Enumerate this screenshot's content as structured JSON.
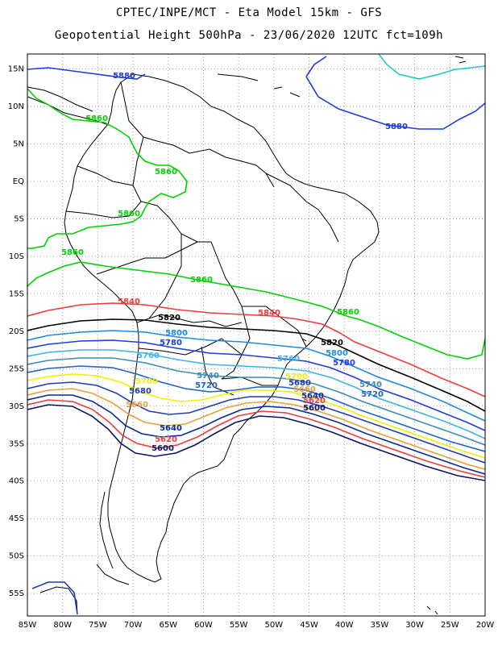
{
  "title_line1": "CPTEC/INPE/MCT - Eta Model 15km - GFS",
  "title_line2": "Geopotential Height 500hPa - 23/06/2020 12UTC fct=109h",
  "map": {
    "lon_range": [
      -85,
      -20
    ],
    "lat_range": [
      -58,
      17
    ],
    "lat_ticks": [
      "15N",
      "10N",
      "5N",
      "EQ",
      "5S",
      "10S",
      "15S",
      "20S",
      "25S",
      "30S",
      "35S",
      "40S",
      "45S",
      "50S",
      "55S"
    ],
    "lon_ticks": [
      "85W",
      "80W",
      "75W",
      "70W",
      "65W",
      "60W",
      "55W",
      "50W",
      "45W",
      "40W",
      "35W",
      "30W",
      "25W",
      "20W"
    ],
    "grid": "dotted"
  },
  "contours": [
    {
      "value": 5880,
      "color": "#1e3cdc"
    },
    {
      "value": 5860,
      "color": "#00d200"
    },
    {
      "value": 5840,
      "color": "#f03c3c"
    },
    {
      "value": 5820,
      "color": "#000000"
    },
    {
      "value": 5800,
      "color": "#1e8cdc"
    },
    {
      "value": 5780,
      "color": "#1e3cdc"
    },
    {
      "value": 5760,
      "color": "#3cb4e6"
    },
    {
      "value": 5740,
      "color": "#3c8cb4"
    },
    {
      "value": 5720,
      "color": "#1e64c8"
    },
    {
      "value": 5700,
      "color": "#f0f000"
    },
    {
      "value": 5680,
      "color": "#1e3cb4"
    },
    {
      "value": 5660,
      "color": "#e6a03c"
    },
    {
      "value": 5640,
      "color": "#0a2896"
    },
    {
      "value": 5620,
      "color": "#f03c3c"
    },
    {
      "value": 5600,
      "color": "#0a1464"
    }
  ],
  "labels": [
    {
      "text": "5880",
      "color": "#1e3cdc"
    },
    {
      "text": "5880",
      "color": "#1e3cdc"
    },
    {
      "text": "5860",
      "color": "#00d200"
    },
    {
      "text": "5860",
      "color": "#00d200"
    },
    {
      "text": "5860",
      "color": "#00d200"
    },
    {
      "text": "5860",
      "color": "#00d200"
    },
    {
      "text": "5860",
      "color": "#00d200"
    },
    {
      "text": "5860",
      "color": "#00d200"
    },
    {
      "text": "5840",
      "color": "#f03c3c"
    },
    {
      "text": "5840",
      "color": "#f03c3c"
    },
    {
      "text": "5820",
      "color": "#000000"
    },
    {
      "text": "5820",
      "color": "#000000"
    },
    {
      "text": "5800",
      "color": "#1e8cdc"
    },
    {
      "text": "5800",
      "color": "#1e8cdc"
    },
    {
      "text": "5780",
      "color": "#1e3cdc"
    },
    {
      "text": "5780",
      "color": "#1e3cdc"
    },
    {
      "text": "5760",
      "color": "#3cb4e6"
    },
    {
      "text": "5760",
      "color": "#3cb4e6"
    },
    {
      "text": "5740",
      "color": "#3c8cb4"
    },
    {
      "text": "5740",
      "color": "#3c8cb4"
    },
    {
      "text": "5720",
      "color": "#1e64c8"
    },
    {
      "text": "5720",
      "color": "#1e64c8"
    },
    {
      "text": "5700",
      "color": "#f0f000"
    },
    {
      "text": "5700",
      "color": "#f0f000"
    },
    {
      "text": "5680",
      "color": "#1e3cb4"
    },
    {
      "text": "5680",
      "color": "#1e3cb4"
    },
    {
      "text": "5660",
      "color": "#e6a03c"
    },
    {
      "text": "5660",
      "color": "#e6a03c"
    },
    {
      "text": "5640",
      "color": "#0a2896"
    },
    {
      "text": "5640",
      "color": "#0a2896"
    },
    {
      "text": "5620",
      "color": "#f03c3c"
    },
    {
      "text": "5620",
      "color": "#f03c3c"
    },
    {
      "text": "5600",
      "color": "#0a1464"
    },
    {
      "text": "5600",
      "color": "#0a1464"
    }
  ]
}
